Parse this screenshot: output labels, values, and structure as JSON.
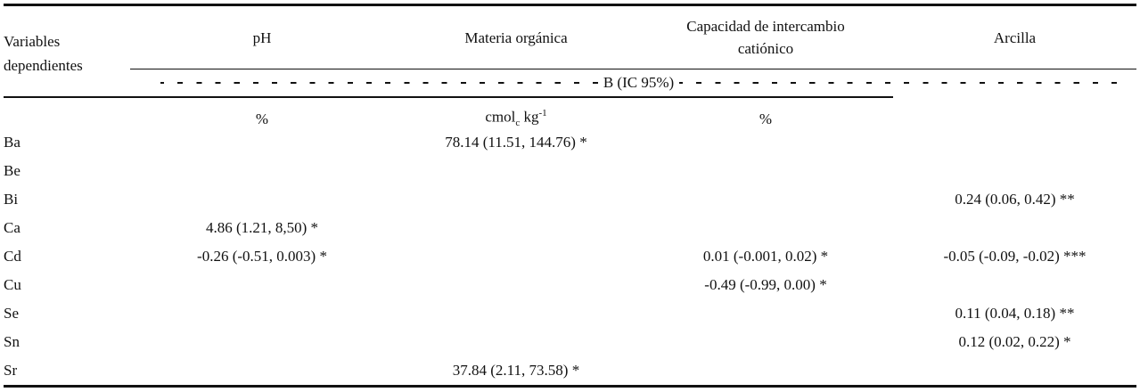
{
  "table": {
    "header": [
      "Variables dependientes",
      "pH",
      "Materia orgánica",
      "Capacidad de intercambio catiónico",
      "Arcilla"
    ],
    "subheader": "B (IC 95%)",
    "units": [
      null,
      {
        "text": "%"
      },
      {
        "base": "cmol",
        "sub": "c",
        "mid": " kg",
        "sup": "-1"
      },
      {
        "text": "%"
      }
    ],
    "rows": [
      [
        "Ba",
        null,
        "78.14 (11.51, 144.76) *",
        null,
        null
      ],
      [
        "Be",
        null,
        null,
        null,
        null
      ],
      [
        "Bi",
        null,
        null,
        null,
        "0.24 (0.06, 0.42) **"
      ],
      [
        "Ca",
        "4.86 (1.21, 8,50) *",
        null,
        null,
        null
      ],
      [
        "Cd",
        "-0.26 (-0.51, 0.003) *",
        null,
        "0.01 (-0.001, 0.02) *",
        "-0.05 (-0.09, -0.02) ***"
      ],
      [
        "Cu",
        null,
        null,
        "-0.49 (-0.99, 0.00) *",
        null
      ],
      [
        "Se",
        null,
        null,
        null,
        "0.11 (0.04, 0.18) **"
      ],
      [
        "Sn",
        null,
        null,
        null,
        "0.12 (0.02, 0.22) *"
      ],
      [
        "Sr",
        null,
        "37.84 (2.11, 73.58) *",
        null,
        null
      ]
    ]
  }
}
